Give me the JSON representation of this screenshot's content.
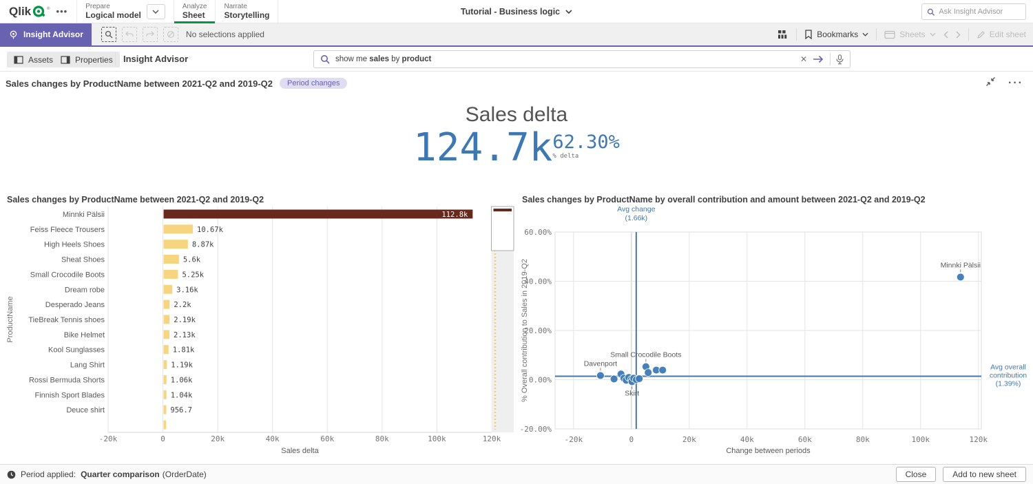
{
  "colors": {
    "accent_purple": "#6962b0",
    "qlik_green": "#009845",
    "bar_yellow": "#F7D480",
    "bar_dark": "#68281B",
    "point_blue": "#3F7CB8",
    "ref_line_blue": "#4477AA",
    "kpi_blue": "#3E78B3"
  },
  "header": {
    "logo": "Qlik",
    "tabs": [
      {
        "section": "Prepare",
        "label": "Logical model"
      },
      {
        "section": "Analyze",
        "label": "Sheet"
      },
      {
        "section": "Narrate",
        "label": "Storytelling"
      }
    ],
    "app_title": "Tutorial - Business logic",
    "search_placeholder": "Ask Insight Advisor"
  },
  "toolbar": {
    "insight_advisor_label": "Insight Advisor",
    "no_selections": "No selections applied",
    "bookmarks_label": "Bookmarks",
    "sheets_label": "Sheets",
    "edit_sheet_label": "Edit sheet"
  },
  "subheader": {
    "assets_label": "Assets",
    "properties_label": "Properties",
    "panel_title": "Insight Advisor",
    "search_query": "show me sales by product",
    "query_parts": [
      {
        "text": "show me ",
        "bold": false
      },
      {
        "text": "sales",
        "bold": true
      },
      {
        "text": " by ",
        "bold": false
      },
      {
        "text": "product",
        "bold": true
      }
    ],
    "clear_glyph": "✕"
  },
  "insight": {
    "title": "Sales changes by ProductName between 2021-Q2 and 2019-Q2",
    "badge": "Period changes"
  },
  "kpi": {
    "title": "Sales delta",
    "value": "124.7k",
    "delta_pct": "62.30%",
    "delta_label": "% delta"
  },
  "footer": {
    "period_prefix": "Period applied:",
    "period_name": "Quarter comparison",
    "period_field": "(OrderDate)",
    "close_label": "Close",
    "add_label": "Add to new sheet"
  },
  "chart_data": [
    {
      "type": "bar",
      "orientation": "horizontal",
      "title": "Sales changes by ProductName between 2021-Q2 and 2019-Q2",
      "xlabel": "Sales delta",
      "ylabel": "ProductName",
      "xlim": [
        -20000,
        120000
      ],
      "grid": true,
      "xticks": [
        {
          "v": -20000,
          "label": "-20k"
        },
        {
          "v": 0,
          "label": "0"
        },
        {
          "v": 20000,
          "label": "20k"
        },
        {
          "v": 40000,
          "label": "40k"
        },
        {
          "v": 60000,
          "label": "60k"
        },
        {
          "v": 80000,
          "label": "80k"
        },
        {
          "v": 100000,
          "label": "100k"
        },
        {
          "v": 120000,
          "label": "120k"
        }
      ],
      "bars": [
        {
          "name": "Minnki Pälsii",
          "value": 112800,
          "label": "112.8k",
          "color": "#68281B",
          "label_inside": true
        },
        {
          "name": "Feiss Fleece Trousers",
          "value": 10670,
          "label": "10.67k",
          "color": "#F7D480"
        },
        {
          "name": "High Heels Shoes",
          "value": 8870,
          "label": "8.87k",
          "color": "#F7D480"
        },
        {
          "name": "Sheat Shoes",
          "value": 5600,
          "label": "5.6k",
          "color": "#F7D480"
        },
        {
          "name": "Small Crocodile Boots",
          "value": 5250,
          "label": "5.25k",
          "color": "#F7D480"
        },
        {
          "name": "Dream robe",
          "value": 3160,
          "label": "3.16k",
          "color": "#F7D480"
        },
        {
          "name": "Desperado Jeans",
          "value": 2200,
          "label": "2.2k",
          "color": "#F7D480"
        },
        {
          "name": "TieBreak Tennis shoes",
          "value": 2190,
          "label": "2.19k",
          "color": "#F7D480"
        },
        {
          "name": "Bike Helmet",
          "value": 2130,
          "label": "2.13k",
          "color": "#F7D480"
        },
        {
          "name": "Kool Sunglasses",
          "value": 1810,
          "label": "1.81k",
          "color": "#F7D480"
        },
        {
          "name": "Lang Shirt",
          "value": 1190,
          "label": "1.19k",
          "color": "#F7D480"
        },
        {
          "name": "Rossi Bermuda Shorts",
          "value": 1060,
          "label": "1.06k",
          "color": "#F7D480"
        },
        {
          "name": "Finnish Sport Blades",
          "value": 1040,
          "label": "1.04k",
          "color": "#F7D480"
        },
        {
          "name": "Deuce shirt",
          "value": 956.7,
          "label": "956.7",
          "color": "#F7D480"
        },
        {
          "name": "",
          "value": 900,
          "label": "",
          "color": "#F7D480"
        }
      ],
      "scrollbar_minimap": true
    },
    {
      "type": "scatter",
      "title": "Sales changes by ProductName by overall contribution and amount between 2021-Q2 and 2019-Q2",
      "xlabel": "Change between periods",
      "ylabel": "% Overall contribution to Sales in 2019-Q2",
      "xlim": [
        -26400,
        121000
      ],
      "ylim": [
        -20,
        60
      ],
      "grid": true,
      "xticks": [
        {
          "v": -20000,
          "label": "-20k"
        },
        {
          "v": 0,
          "label": "0"
        },
        {
          "v": 20000,
          "label": "20k"
        },
        {
          "v": 40000,
          "label": "40k"
        },
        {
          "v": 60000,
          "label": "60k"
        },
        {
          "v": 80000,
          "label": "80k"
        },
        {
          "v": 100000,
          "label": "100k"
        },
        {
          "v": 120000,
          "label": "120k"
        }
      ],
      "yticks": [
        {
          "v": -20,
          "label": "-20.00%"
        },
        {
          "v": 0,
          "label": "0.00%"
        },
        {
          "v": 20,
          "label": "20.00%"
        },
        {
          "v": 40,
          "label": "40.00%"
        },
        {
          "v": 60,
          "label": "60.00%"
        }
      ],
      "ref_x": {
        "value": 1660,
        "label_lines": [
          "Avg change",
          "(1.66k)"
        ]
      },
      "ref_y": {
        "value": 1.39,
        "label_lines": [
          "Avg overall",
          "contribution",
          "(1.39%)"
        ]
      },
      "points": [
        {
          "x": -10700,
          "y": 1.7,
          "label": "Davenport",
          "label_pos": "top"
        },
        {
          "x": -6000,
          "y": 0.3
        },
        {
          "x": -3600,
          "y": 2.3
        },
        {
          "x": -2600,
          "y": 0.6
        },
        {
          "x": -1800,
          "y": -0.2
        },
        {
          "x": -900,
          "y": 0.9
        },
        {
          "x": 0,
          "y": 0.1
        },
        {
          "x": 200,
          "y": -0.8,
          "label": "Skirt",
          "label_pos": "bottom"
        },
        {
          "x": 800,
          "y": 0.6
        },
        {
          "x": 1700,
          "y": 0.0
        },
        {
          "x": 2700,
          "y": 0.4
        },
        {
          "x": 5000,
          "y": 5.3,
          "label": "Small Crocodile Boots",
          "label_pos": "top"
        },
        {
          "x": 5800,
          "y": 2.9
        },
        {
          "x": 8600,
          "y": 3.9
        },
        {
          "x": 10800,
          "y": 3.9
        },
        {
          "x": 113800,
          "y": 41.7,
          "label": "Minnki Pälsii",
          "label_pos": "top"
        }
      ]
    }
  ]
}
